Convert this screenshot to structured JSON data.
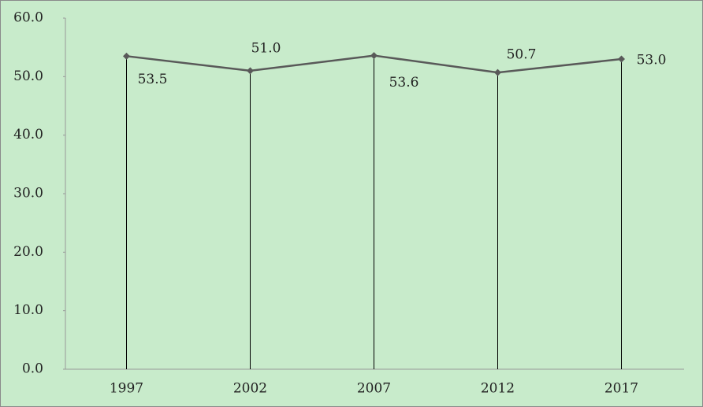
{
  "chart_data": {
    "type": "line",
    "categories": [
      "1997",
      "2002",
      "2007",
      "2012",
      "2017"
    ],
    "values": [
      53.5,
      51.0,
      53.6,
      50.7,
      53.0
    ],
    "value_labels": [
      "53.5",
      "51.0",
      "53.6",
      "50.7",
      "53.0"
    ],
    "color": "#595959",
    "ylim": [
      0,
      60
    ],
    "yticks": [
      {
        "value": 0,
        "label": "0.0"
      },
      {
        "value": 10,
        "label": "10.0"
      },
      {
        "value": 20,
        "label": "20.0"
      },
      {
        "value": 30,
        "label": "30.0"
      },
      {
        "value": 40,
        "label": "40.0"
      },
      {
        "value": 50,
        "label": "50.0"
      },
      {
        "value": 60,
        "label": "60.0"
      }
    ],
    "drop_lines": true
  }
}
